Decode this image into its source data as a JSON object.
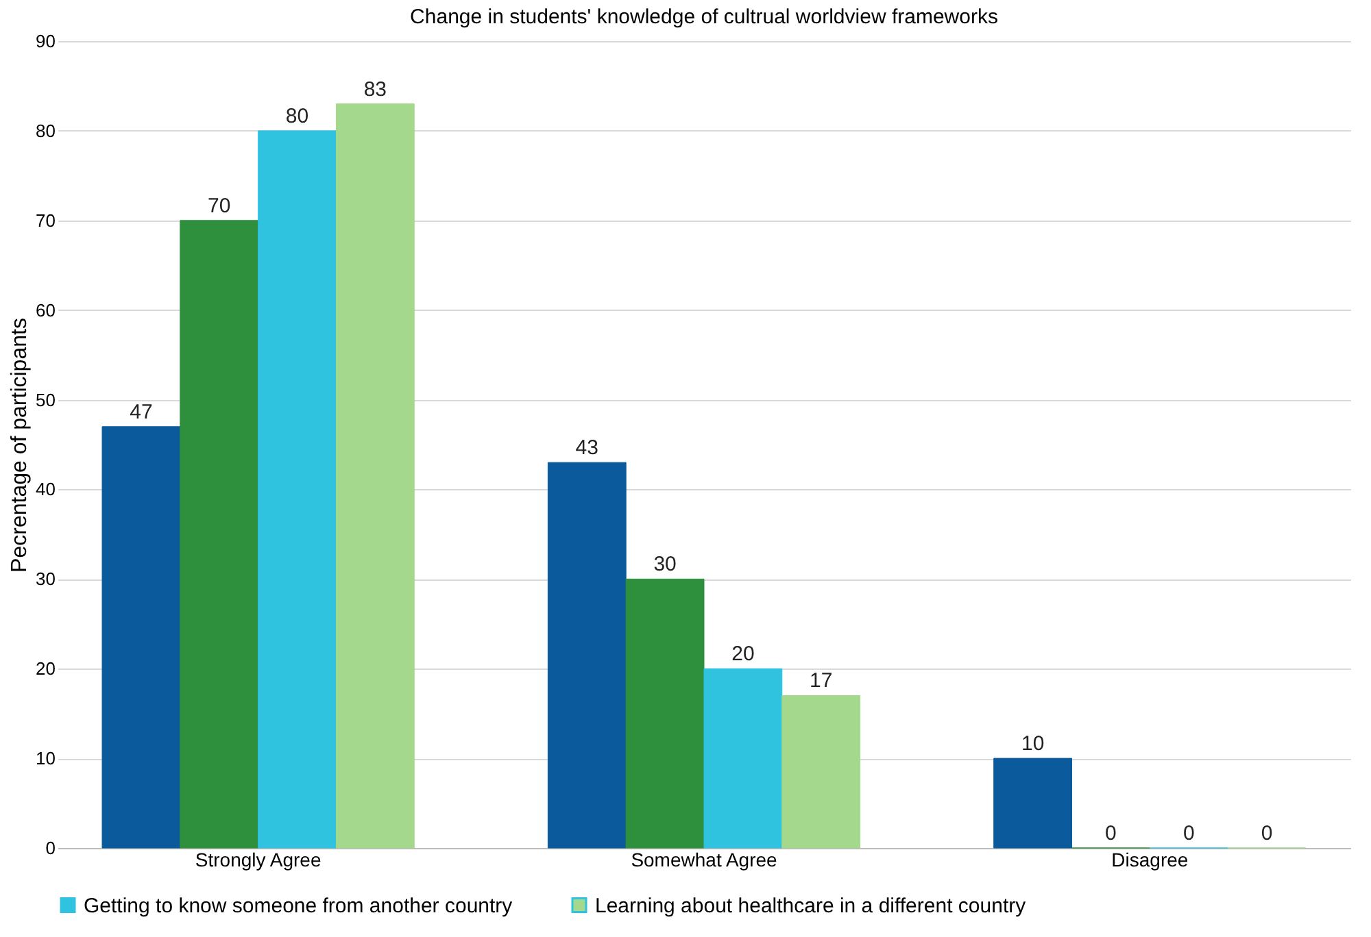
{
  "chart_data": {
    "type": "bar",
    "title": "Change in students' knowledge of cultrual worldview frameworks",
    "ylabel": "Pecrentage of participants",
    "categories": [
      "Strongly Agree",
      "Somewhat Agree",
      "Disagree"
    ],
    "series": [
      {
        "color": "#0b5b9c",
        "values": [
          47,
          43,
          10
        ]
      },
      {
        "color": "#2e8f3c",
        "values": [
          70,
          30,
          0
        ]
      },
      {
        "name": "Getting to know someone from another country",
        "color": "#2fc3e0",
        "values": [
          80,
          20,
          0
        ]
      },
      {
        "name": "Learning about healthcare in a different country",
        "color": "#a4d88c",
        "values": [
          83,
          17,
          0
        ]
      }
    ],
    "ylim": [
      0,
      90
    ],
    "yticks": [
      0,
      10,
      20,
      30,
      40,
      50,
      60,
      70,
      80,
      90
    ],
    "grid": "y",
    "legend": "bottom",
    "data_labels": true
  }
}
